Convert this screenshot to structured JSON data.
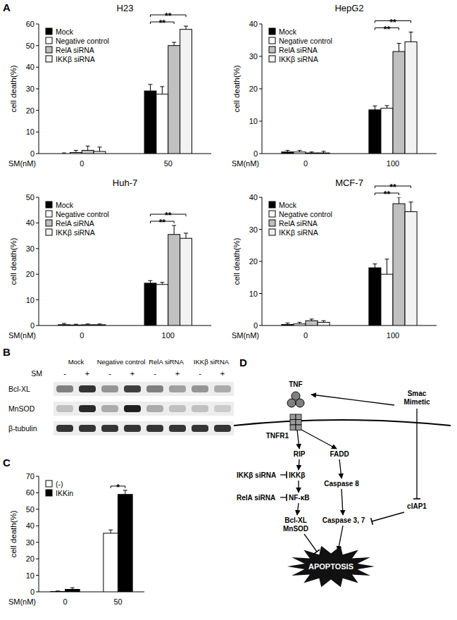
{
  "panel_labels": [
    "A",
    "B",
    "C",
    "D"
  ],
  "chart_data": [
    {
      "type": "bar",
      "title": "H23",
      "y_label": "cell death(%)",
      "x_label": "SM(nM)",
      "categories": [
        "0",
        "50"
      ],
      "series": [
        {
          "name": "Mock",
          "color": "#000000",
          "values": [
            0,
            29
          ],
          "errors": [
            0.3,
            3
          ]
        },
        {
          "name": "Negative control",
          "color": "#ffffff",
          "values": [
            0.5,
            27.5
          ],
          "errors": [
            1,
            3.5
          ]
        },
        {
          "name": "RelA siRNA",
          "color": "#c0c0c0",
          "values": [
            1.5,
            50
          ],
          "errors": [
            2,
            1.5
          ]
        },
        {
          "name": "IKKβ siRNA",
          "color": "#f2f2f2",
          "values": [
            1,
            57.5
          ],
          "errors": [
            2,
            1.5
          ]
        }
      ],
      "ylim": [
        0,
        60
      ],
      "yticks": [
        0,
        10,
        20,
        30,
        40,
        50,
        60
      ],
      "legend": "upper left",
      "annotations": [
        {
          "text": "**",
          "category": 1,
          "series": [
            0,
            2
          ]
        },
        {
          "text": "**",
          "category": 1,
          "series": [
            0,
            3
          ]
        }
      ]
    },
    {
      "type": "bar",
      "title": "HepG2",
      "y_label": "cell death(%)",
      "x_label": "SM(nM)",
      "categories": [
        "0",
        "100"
      ],
      "series": [
        {
          "name": "Mock",
          "color": "#000000",
          "values": [
            0.5,
            13.5
          ],
          "errors": [
            0.5,
            1.2
          ]
        },
        {
          "name": "Negative control",
          "color": "#ffffff",
          "values": [
            0.5,
            14
          ],
          "errors": [
            0.5,
            0.8
          ]
        },
        {
          "name": "RelA siRNA",
          "color": "#c0c0c0",
          "values": [
            0.2,
            31.5
          ],
          "errors": [
            0.3,
            2.5
          ]
        },
        {
          "name": "IKKβ siRNA",
          "color": "#f2f2f2",
          "values": [
            0.2,
            34.5
          ],
          "errors": [
            0.5,
            3
          ]
        }
      ],
      "ylim": [
        0,
        40
      ],
      "yticks": [
        0,
        10,
        20,
        30,
        40
      ],
      "legend": "upper left",
      "annotations": [
        {
          "text": "**",
          "category": 1,
          "series": [
            0,
            2
          ]
        },
        {
          "text": "**",
          "category": 1,
          "series": [
            0,
            3
          ]
        }
      ]
    },
    {
      "type": "bar",
      "title": "Huh-7",
      "y_label": "cell death(%)",
      "x_label": "SM(nM)",
      "categories": [
        "0",
        "100"
      ],
      "series": [
        {
          "name": "Mock",
          "color": "#000000",
          "values": [
            0.3,
            16.5
          ],
          "errors": [
            0.5,
            1
          ]
        },
        {
          "name": "Negative control",
          "color": "#ffffff",
          "values": [
            0.2,
            16
          ],
          "errors": [
            0.3,
            0.8
          ]
        },
        {
          "name": "RelA siRNA",
          "color": "#c0c0c0",
          "values": [
            0.3,
            35.5
          ],
          "errors": [
            0.3,
            3.5
          ]
        },
        {
          "name": "IKKβ siRNA",
          "color": "#f2f2f2",
          "values": [
            0.3,
            34
          ],
          "errors": [
            0.3,
            2
          ]
        }
      ],
      "ylim": [
        0,
        50
      ],
      "yticks": [
        0,
        10,
        20,
        30,
        40,
        50
      ],
      "legend": "upper left",
      "annotations": [
        {
          "text": "**",
          "category": 1,
          "series": [
            0,
            2
          ]
        },
        {
          "text": "**",
          "category": 1,
          "series": [
            0,
            3
          ]
        }
      ]
    },
    {
      "type": "bar",
      "title": "MCF-7",
      "y_label": "cell death(%)",
      "x_label": "SM(nM)",
      "categories": [
        "0",
        "100"
      ],
      "series": [
        {
          "name": "Mock",
          "color": "#000000",
          "values": [
            0.3,
            18
          ],
          "errors": [
            0.5,
            1.2
          ]
        },
        {
          "name": "Negative control",
          "color": "#ffffff",
          "values": [
            0.5,
            16
          ],
          "errors": [
            0.5,
            4.7
          ]
        },
        {
          "name": "RelA siRNA",
          "color": "#c0c0c0",
          "values": [
            1.5,
            38
          ],
          "errors": [
            0.5,
            2
          ]
        },
        {
          "name": "IKKβ siRNA",
          "color": "#f2f2f2",
          "values": [
            1,
            35.5
          ],
          "errors": [
            0.5,
            3
          ]
        }
      ],
      "ylim": [
        0,
        40
      ],
      "yticks": [
        0,
        10,
        20,
        30,
        40
      ],
      "legend": "upper left",
      "annotations": [
        {
          "text": "**",
          "category": 1,
          "series": [
            0,
            2
          ]
        },
        {
          "text": "**",
          "category": 1,
          "series": [
            0,
            3
          ]
        }
      ]
    },
    {
      "type": "bar",
      "y_label": "cell death(%)",
      "x_label": "SM(nM)",
      "categories": [
        "0",
        "50"
      ],
      "series": [
        {
          "name": "(-)",
          "color": "#ffffff",
          "values": [
            0.2,
            35.5
          ],
          "errors": [
            0.3,
            2
          ]
        },
        {
          "name": "IKKin",
          "color": "#000000",
          "values": [
            1.5,
            59
          ],
          "errors": [
            1,
            2.5
          ]
        }
      ],
      "ylim": [
        0,
        70
      ],
      "yticks": [
        0,
        10,
        20,
        30,
        40,
        50,
        60,
        70
      ],
      "legend": "upper left",
      "annotations": [
        {
          "text": "*",
          "category": 1,
          "series": [
            0,
            1
          ]
        }
      ]
    }
  ],
  "blot": {
    "groups": [
      "Mock",
      "Negative control",
      "RelA siRNA",
      "IKKβ siRNA"
    ],
    "treatment_label": "SM",
    "treatment": [
      "-",
      "+",
      "-",
      "+",
      "-",
      "+",
      "-",
      "+"
    ],
    "rows": [
      "Bcl-XL",
      "MnSOD",
      "β-tubulin"
    ],
    "intensities": [
      [
        0.5,
        0.85,
        0.4,
        0.8,
        0.5,
        0.35,
        0.4,
        0.3
      ],
      [
        0.2,
        0.9,
        0.3,
        0.95,
        0.3,
        0.2,
        0.2,
        0.15
      ],
      [
        0.85,
        0.85,
        0.85,
        0.85,
        0.85,
        0.85,
        0.85,
        0.85
      ]
    ]
  },
  "diagram": {
    "nodes": [
      {
        "lines": [
          "TNF"
        ]
      },
      {
        "lines": [
          "TNFR1"
        ]
      },
      {
        "lines": [
          "Smac",
          "Mimetic"
        ]
      },
      {
        "lines": [
          "RIP"
        ]
      },
      {
        "lines": [
          "FADD"
        ]
      },
      {
        "lines": [
          "IKKβ siRNA"
        ]
      },
      {
        "lines": [
          "IKKβ"
        ]
      },
      {
        "lines": [
          "RelA siRNA"
        ]
      },
      {
        "lines": [
          "NF-κB"
        ]
      },
      {
        "lines": [
          "Bcl-XL",
          "MnSOD"
        ]
      },
      {
        "lines": [
          "Caspase 8"
        ]
      },
      {
        "lines": [
          "Caspase 3, 7"
        ]
      },
      {
        "lines": [
          "cIAP1"
        ]
      },
      {
        "lines": [
          "APOPTOSIS"
        ]
      }
    ]
  }
}
